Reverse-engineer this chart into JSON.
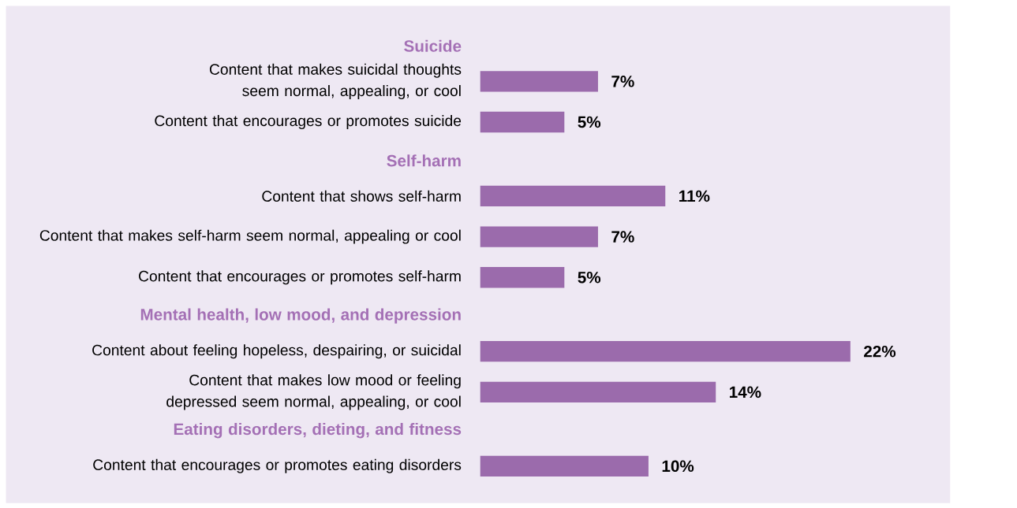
{
  "chart_data": {
    "type": "bar",
    "orientation": "horizontal",
    "color": "#9b6bac",
    "categories": [
      "Suicide",
      "Content that makes suicidal thoughts seem normal, appealing, or cool",
      "Content that encourages or promotes suicide",
      "Self-harm",
      "Content that shows self-harm",
      "Content that makes self-harm seem normal, appealing or cool",
      "Content that encourages or promotes self-harm",
      "Mental health, low mood, and depression",
      "Content about feeling hopeless, despairing, or suicidal",
      "Content that makes low mood or feeling depressed seem normal, appealing, or cool",
      "Eating disorders, dieting, and fitness",
      "Content that encourages or promotes eating disorders"
    ],
    "values": [
      null,
      7,
      5,
      null,
      11,
      7,
      5,
      null,
      22,
      14,
      null,
      10
    ],
    "value_labels": [
      null,
      "7%",
      "5%",
      null,
      "11%",
      "7%",
      "5%",
      null,
      "22%",
      "14%",
      null,
      "10%"
    ]
  }
}
